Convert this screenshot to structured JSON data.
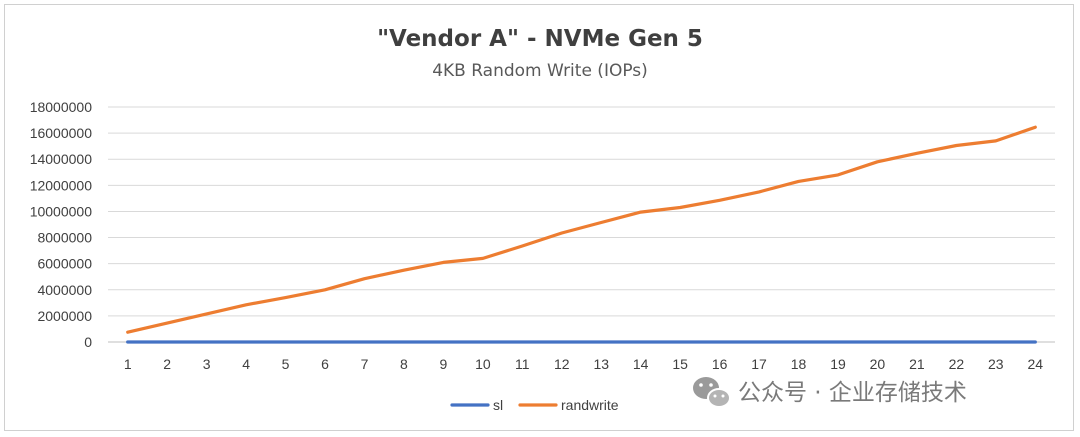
{
  "chart_data": {
    "type": "line",
    "title": "\"Vendor A\" - NVMe Gen 5",
    "subtitle": "4KB Random Write (IOPs)",
    "xlabel": "",
    "ylabel": "",
    "x": [
      1,
      2,
      3,
      4,
      5,
      6,
      7,
      8,
      9,
      10,
      11,
      12,
      13,
      14,
      15,
      16,
      17,
      18,
      19,
      20,
      21,
      22,
      23,
      24
    ],
    "ylim": [
      0,
      18000000
    ],
    "yticks": [
      0,
      2000000,
      4000000,
      6000000,
      8000000,
      10000000,
      12000000,
      14000000,
      16000000,
      18000000
    ],
    "grid": true,
    "legend_position": "bottom",
    "series": [
      {
        "name": "sl",
        "color": "#4472c4",
        "values": [
          0,
          0,
          0,
          0,
          0,
          0,
          0,
          0,
          0,
          0,
          0,
          0,
          0,
          0,
          0,
          0,
          0,
          0,
          0,
          0,
          0,
          0,
          0,
          0
        ]
      },
      {
        "name": "randwrite",
        "color": "#ed7d31",
        "values": [
          750000,
          1450000,
          2150000,
          2850000,
          3400000,
          4000000,
          4850000,
          5500000,
          6100000,
          6400000,
          7350000,
          8350000,
          9150000,
          9950000,
          10300000,
          10850000,
          11500000,
          12300000,
          12800000,
          13800000,
          14450000,
          15050000,
          15400000,
          16450000
        ]
      }
    ]
  },
  "watermark": {
    "icon": "wechat-icon",
    "text": "公众号 · 企业存储技术"
  }
}
